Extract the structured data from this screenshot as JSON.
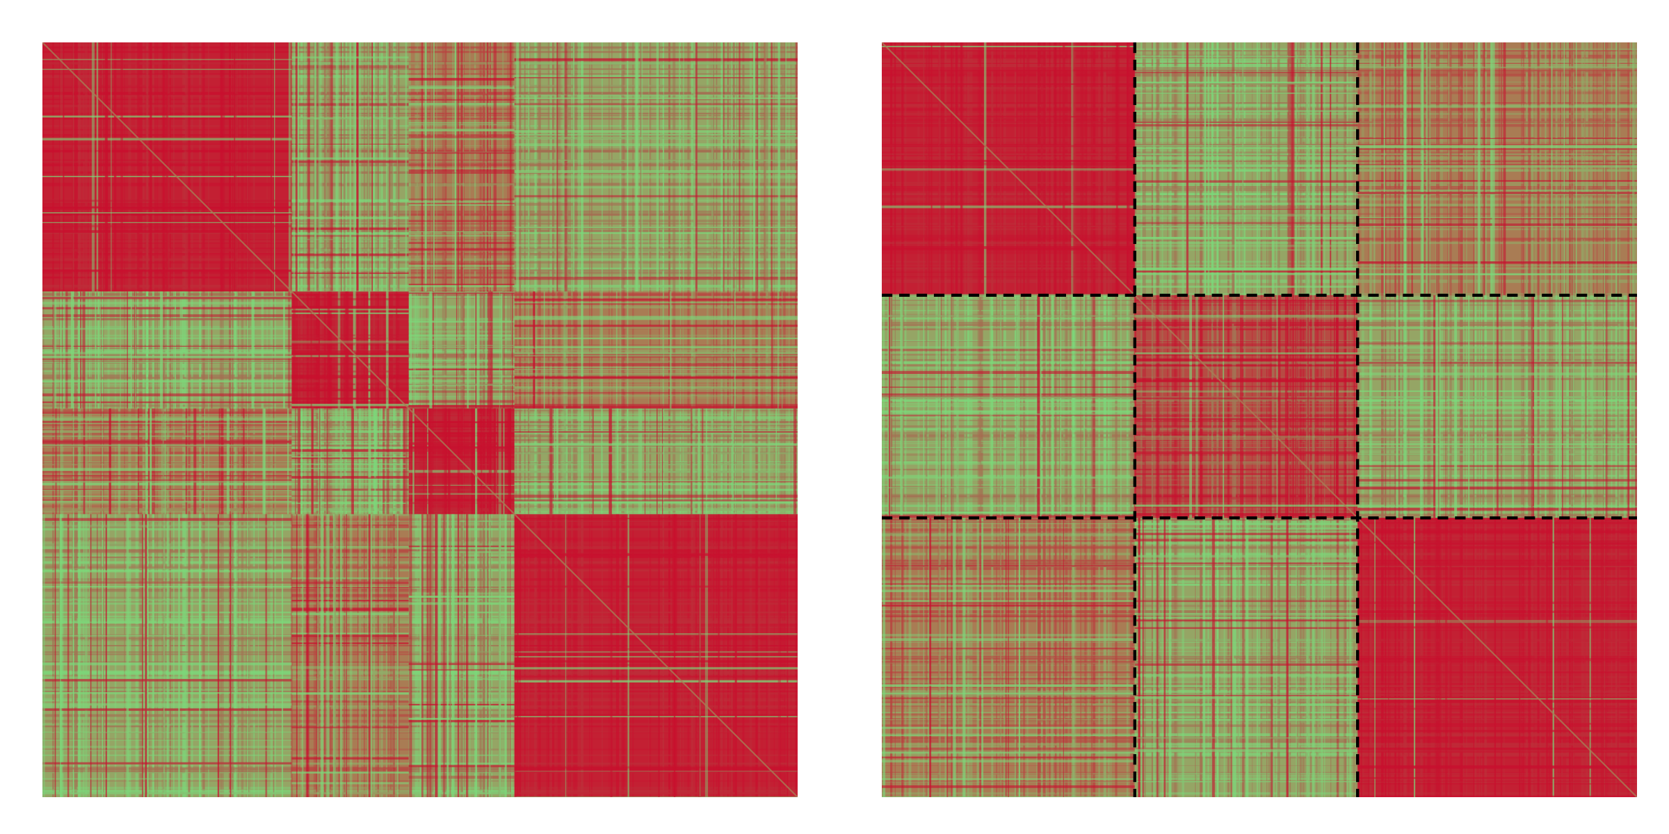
{
  "chart_data": [
    {
      "type": "heatmap",
      "title": "",
      "xlabel": "",
      "ylabel": "",
      "grid": false,
      "legend": "none",
      "matrix_size": 1000,
      "colors": {
        "high": "#c8102e",
        "low": "#7dd87a",
        "mid": "#a97c55"
      },
      "blocks": [
        {
          "start": 0,
          "end": 330,
          "level": "high"
        },
        {
          "start": 330,
          "end": 485,
          "level": "high"
        },
        {
          "start": 485,
          "end": 625,
          "level": "high"
        },
        {
          "start": 625,
          "end": 1000,
          "level": "high"
        }
      ],
      "separators": []
    },
    {
      "type": "heatmap",
      "title": "",
      "xlabel": "",
      "ylabel": "",
      "grid": false,
      "legend": "none",
      "matrix_size": 1000,
      "colors": {
        "high": "#c8102e",
        "low": "#7dd87a",
        "mid": "#a97c55"
      },
      "blocks": [
        {
          "start": 0,
          "end": 335,
          "level": "high"
        },
        {
          "start": 335,
          "end": 630,
          "level": "mixed"
        },
        {
          "start": 630,
          "end": 1000,
          "level": "high"
        }
      ],
      "separators": [
        335,
        630
      ]
    }
  ]
}
